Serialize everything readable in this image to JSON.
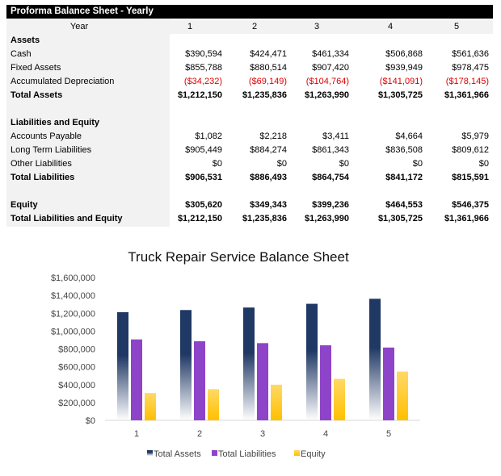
{
  "table": {
    "title": "Proforma Balance Sheet - Yearly",
    "year_label": "Year",
    "years": [
      "1",
      "2",
      "3",
      "4",
      "5"
    ],
    "rows": [
      {
        "label": "Assets",
        "bold": true,
        "values": []
      },
      {
        "label": "Cash",
        "values": [
          "$390,594",
          "$424,471",
          "$461,334",
          "$506,868",
          "$561,636"
        ]
      },
      {
        "label": "Fixed Assets",
        "values": [
          "$855,788",
          "$880,514",
          "$907,420",
          "$939,949",
          "$978,475"
        ]
      },
      {
        "label": "Accumulated Depreciation",
        "negative": true,
        "values": [
          "($34,232)",
          "($69,149)",
          "($104,764)",
          "($141,091)",
          "($178,145)"
        ]
      },
      {
        "label": "Total Assets",
        "bold": true,
        "values": [
          "$1,212,150",
          "$1,235,836",
          "$1,263,990",
          "$1,305,725",
          "$1,361,966"
        ]
      },
      {
        "label": "",
        "values": []
      },
      {
        "label": "Liabilities and Equity",
        "bold": true,
        "values": []
      },
      {
        "label": "Accounts Payable",
        "values": [
          "$1,082",
          "$2,218",
          "$3,411",
          "$4,664",
          "$5,979"
        ]
      },
      {
        "label": "Long Term Liabilities",
        "values": [
          "$905,449",
          "$884,274",
          "$861,343",
          "$836,508",
          "$809,612"
        ]
      },
      {
        "label": "Other Liabilities",
        "values": [
          "$0",
          "$0",
          "$0",
          "$0",
          "$0"
        ]
      },
      {
        "label": "Total Liabilities",
        "bold": true,
        "values": [
          "$906,531",
          "$886,493",
          "$864,754",
          "$841,172",
          "$815,591"
        ]
      },
      {
        "label": "",
        "values": []
      },
      {
        "label": "Equity",
        "bold": true,
        "values": [
          "$305,620",
          "$349,343",
          "$399,236",
          "$464,553",
          "$546,375"
        ]
      },
      {
        "label": "Total Liabilities and Equity",
        "bold": true,
        "values": [
          "$1,212,150",
          "$1,235,836",
          "$1,263,990",
          "$1,305,725",
          "$1,361,966"
        ]
      }
    ],
    "negative_color": "#e00000"
  },
  "chart_data": {
    "type": "bar",
    "title": "Truck Repair Service Balance Sheet",
    "categories": [
      "1",
      "2",
      "3",
      "4",
      "5"
    ],
    "series": [
      {
        "name": "Total Assets",
        "values": [
          1212150,
          1235836,
          1263990,
          1305725,
          1361966
        ],
        "color": "#1f3864"
      },
      {
        "name": "Total Liabilities",
        "values": [
          906531,
          886493,
          864754,
          841172,
          815591
        ],
        "color": "#8e44c8"
      },
      {
        "name": "Equity",
        "values": [
          305620,
          349343,
          399236,
          464553,
          546375
        ],
        "color": "#ffc000"
      }
    ],
    "ylim": [
      0,
      1600000
    ],
    "yticks": [
      "$0",
      "$200,000",
      "$400,000",
      "$600,000",
      "$800,000",
      "$1,000,000",
      "$1,200,000",
      "$1,400,000",
      "$1,600,000"
    ],
    "grid": false,
    "legend": "bottom"
  }
}
